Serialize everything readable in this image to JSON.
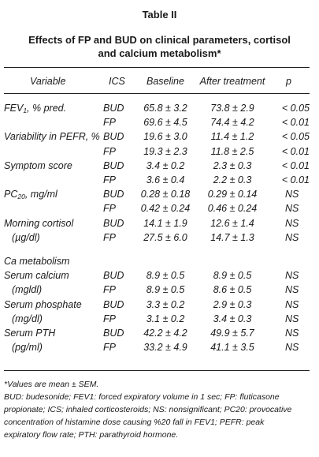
{
  "table_label": "Table II",
  "title_line1": "Effects of FP and BUD on clinical parameters, cortisol",
  "title_line2": "and calcium metabolism*",
  "headers": {
    "variable": "Variable",
    "ics": "ICS",
    "baseline": "Baseline",
    "after": "After treatment",
    "p": "p"
  },
  "rows": [
    {
      "var": "FEV",
      "var_sub": "1",
      "var_after": ", % pred.",
      "ics": "BUD",
      "baseline": "65.8 ± 3.2",
      "after": "73.8 ± 2.9",
      "p": "< 0.05"
    },
    {
      "var": "",
      "ics": "FP",
      "baseline": "69.6 ± 4.5",
      "after": "74.4 ± 4.2",
      "p": "< 0.01"
    },
    {
      "var": "Variability in PEFR, %",
      "ics": "BUD",
      "baseline": "19.6 ± 3.0",
      "after": "11.4 ± 1.2",
      "p": "< 0.05"
    },
    {
      "var": "",
      "ics": "FP",
      "baseline": "19.3 ± 2.3",
      "after": "11.8 ± 2.5",
      "p": "< 0.01"
    },
    {
      "var": "Symptom score",
      "ics": "BUD",
      "baseline": "3.4 ± 0.2",
      "after": "2.3 ± 0.3",
      "p": "< 0.01"
    },
    {
      "var": "",
      "ics": "FP",
      "baseline": "3.6 ± 0.4",
      "after": "2.2 ± 0.3",
      "p": "< 0.01"
    },
    {
      "var": "PC",
      "var_sub": "20",
      "var_after": ", mg/ml",
      "ics": "BUD",
      "baseline": "0.28 ± 0.18",
      "after": "0.29 ± 0.14",
      "p": "NS"
    },
    {
      "var": "",
      "ics": "FP",
      "baseline": "0.42 ± 0.24",
      "after": "0.46 ± 0.24",
      "p": "NS"
    },
    {
      "var": "Morning cortisol",
      "ics": "BUD",
      "baseline": "14.1 ± 1.9",
      "after": "12.6 ± 1.4",
      "p": "NS"
    },
    {
      "var": "(µg/dl)",
      "indent": true,
      "ics": "FP",
      "baseline": "27.5 ± 6.0",
      "after": "14.7 ± 1.3",
      "p": "NS"
    },
    {
      "var": "Ca metabolism",
      "section": true
    },
    {
      "var": "Serum calcium",
      "ics": "BUD",
      "baseline": "8.9 ± 0.5",
      "after": "8.9 ± 0.5",
      "p": "NS"
    },
    {
      "var": "(mgldl)",
      "indent": true,
      "ics": "FP",
      "baseline": "8.9 ± 0.5",
      "after": "8.6 ± 0.5",
      "p": "NS"
    },
    {
      "var": "Serum phosphate",
      "ics": "BUD",
      "baseline": "3.3 ± 0.2",
      "after": "2.9 ± 0.3",
      "p": "NS"
    },
    {
      "var": "(mg/dl)",
      "indent": true,
      "ics": "FP",
      "baseline": "3.1 ± 0.2",
      "after": "3.4 ± 0.3",
      "p": "NS"
    },
    {
      "var": "Serum PTH",
      "ics": "BUD",
      "baseline": "42.2 ± 4.2",
      "after": "49.9 ± 5.7",
      "p": "NS"
    },
    {
      "var": "(pg/ml)",
      "indent": true,
      "ics": "FP",
      "baseline": "33.2 ± 4.9",
      "after": "41.1 ± 3.5",
      "p": "NS"
    }
  ],
  "footnote1": "*Values are mean ± SEM.",
  "footnote2_lines": [
    "BUD: budesonide; FEV1: forced expiratory volume in 1 sec; FP: fluticasone",
    "propionate; ICS; inhaled corticosteroids; NS: nonsignificant; PC20: provocative",
    "concentration of histamine dose causing %20 fall in FEV1; PEFR: peak",
    "expiratory flow rate; PTH: parathyroid hormone."
  ]
}
